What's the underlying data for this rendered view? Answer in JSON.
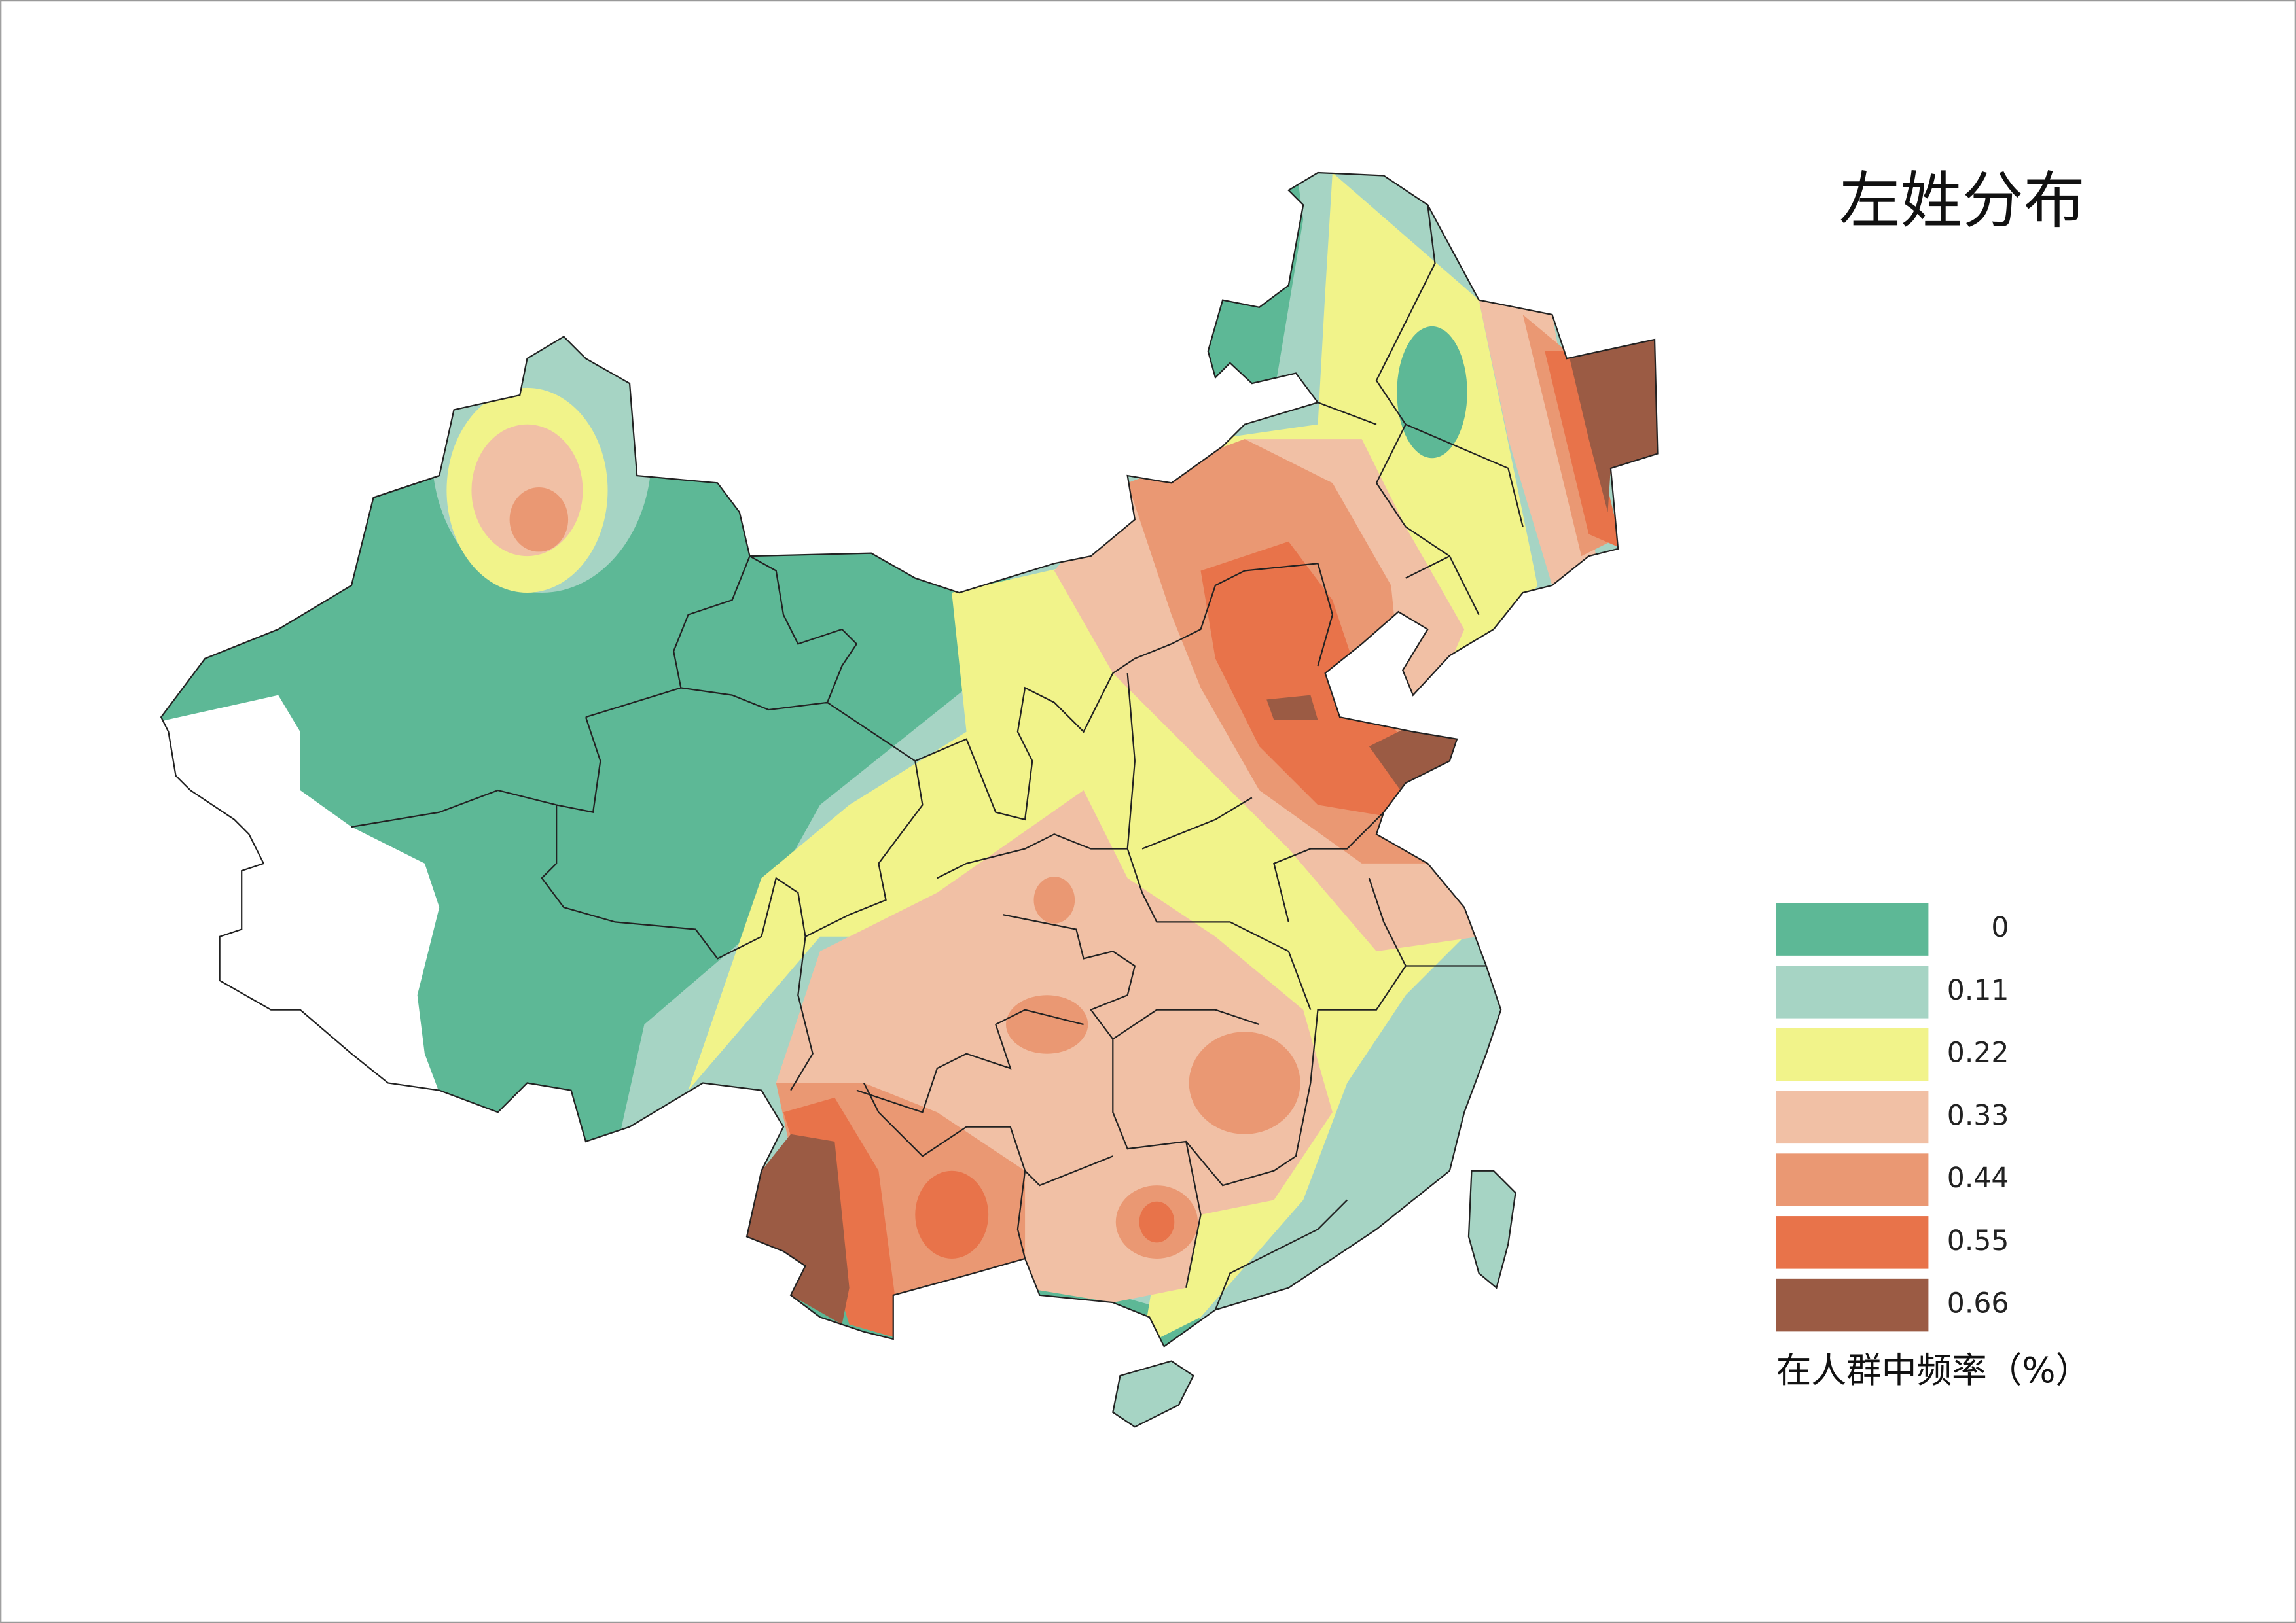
{
  "title": "左姓分布",
  "legend": {
    "items": [
      {
        "label": "0",
        "color": "#5db896"
      },
      {
        "label": "0.11",
        "color": "#a6d4c4"
      },
      {
        "label": "0.22",
        "color": "#f1f38a"
      },
      {
        "label": "0.33",
        "color": "#f1c0a5"
      },
      {
        "label": "0.44",
        "color": "#ea9873"
      },
      {
        "label": "0.55",
        "color": "#e8734a"
      },
      {
        "label": "0.66",
        "color": "#9b5b44"
      }
    ],
    "caption": "在人群中频率（%）"
  }
}
